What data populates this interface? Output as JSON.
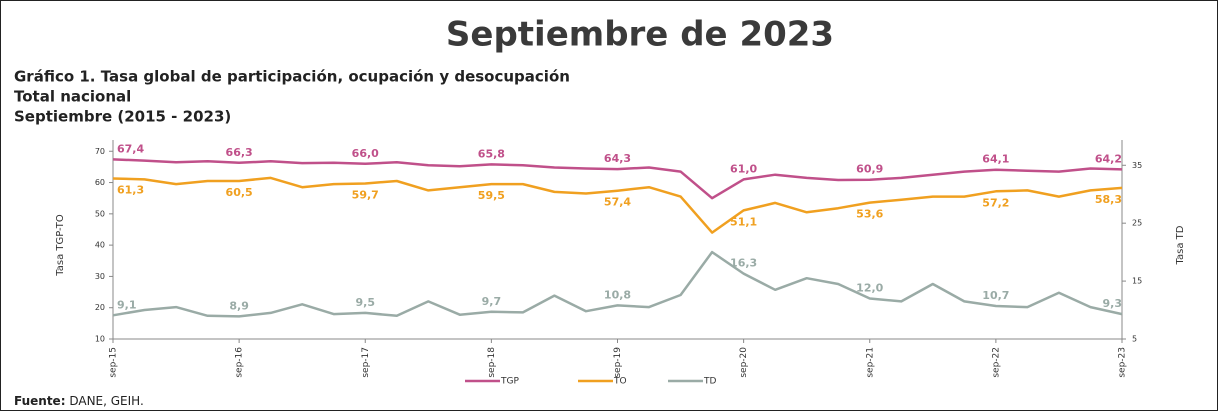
{
  "chart_data": {
    "type": "line",
    "title": "Septiembre de 2023",
    "subtitle": [
      "Gráfico 1. Tasa global de participación, ocupación y desocupación",
      "Total nacional",
      "Septiembre (2015 - 2023)"
    ],
    "ylabel": "Tasa TGP-TO",
    "y2label": "Tasa TD",
    "categories": [
      "sep-15",
      null,
      null,
      null,
      "sep-16",
      null,
      null,
      null,
      "sep-17",
      null,
      null,
      null,
      "sep-18",
      null,
      null,
      null,
      "sep-19",
      null,
      null,
      null,
      "sep-20",
      null,
      null,
      null,
      "sep-21",
      null,
      null,
      null,
      "sep-22",
      null,
      null,
      null,
      "sep-23"
    ],
    "ylim": [
      10,
      72
    ],
    "yticks": [
      10,
      20,
      30,
      40,
      50,
      60,
      70
    ],
    "y2lim": [
      5,
      38.5
    ],
    "y2ticks": [
      5,
      15,
      25,
      35
    ],
    "series": [
      {
        "name": "TGP",
        "color": "#c0508a",
        "values": [
          67.4,
          67,
          66.5,
          66.8,
          66.3,
          66.8,
          66.2,
          66.3,
          66.0,
          66.5,
          65.5,
          65.2,
          65.8,
          65.5,
          64.8,
          64.5,
          64.3,
          64.8,
          63.5,
          55,
          61.0,
          62.5,
          61.5,
          60.8,
          60.9,
          61.5,
          62.5,
          63.5,
          64.1,
          63.8,
          63.5,
          64.5,
          64.2
        ],
        "value_labels": [
          "67,4",
          null,
          null,
          null,
          "66,3",
          null,
          null,
          null,
          "66,0",
          null,
          null,
          null,
          "65,8",
          null,
          null,
          null,
          "64,3",
          null,
          null,
          null,
          "61,0",
          null,
          null,
          null,
          "60,9",
          null,
          null,
          null,
          "64,1",
          null,
          null,
          null,
          "64,2"
        ]
      },
      {
        "name": "TO",
        "color": "#f0a020",
        "values": [
          61.3,
          61,
          59.5,
          60.5,
          60.5,
          61.5,
          58.5,
          59.5,
          59.7,
          60.5,
          57.5,
          58.5,
          59.5,
          59.5,
          57,
          56.5,
          57.4,
          58.5,
          55.5,
          44,
          51.1,
          53.5,
          50.5,
          51.8,
          53.6,
          54.5,
          55.5,
          55.5,
          57.2,
          57.5,
          55.5,
          57.5,
          58.3
        ],
        "value_labels": [
          "61,3",
          null,
          null,
          null,
          "60,5",
          null,
          null,
          null,
          "59,7",
          null,
          null,
          null,
          "59,5",
          null,
          null,
          null,
          "57,4",
          null,
          null,
          null,
          "51,1",
          null,
          null,
          null,
          "53,6",
          null,
          null,
          null,
          "57,2",
          null,
          null,
          null,
          "58,3"
        ]
      },
      {
        "name": "TD",
        "color": "#9aaba6",
        "axis": "y2",
        "values": [
          9.1,
          10,
          10.5,
          9,
          8.9,
          9.5,
          11,
          9.3,
          9.5,
          9,
          11.5,
          9.2,
          9.7,
          9.6,
          12.5,
          9.8,
          10.8,
          10.5,
          12.6,
          20,
          16.3,
          13.5,
          15.5,
          14.5,
          12.0,
          11.5,
          14.5,
          11.5,
          10.7,
          10.5,
          13,
          10.5,
          9.3
        ],
        "value_labels": [
          "9,1",
          null,
          null,
          null,
          "8,9",
          null,
          null,
          null,
          "9,5",
          null,
          null,
          null,
          "9,7",
          null,
          null,
          null,
          "10,8",
          null,
          null,
          null,
          "16,3",
          null,
          null,
          null,
          "12,0",
          null,
          null,
          null,
          "10,7",
          null,
          null,
          null,
          "9,3"
        ]
      }
    ],
    "source_label": "Fuente:",
    "source": "DANE, GEIH."
  }
}
